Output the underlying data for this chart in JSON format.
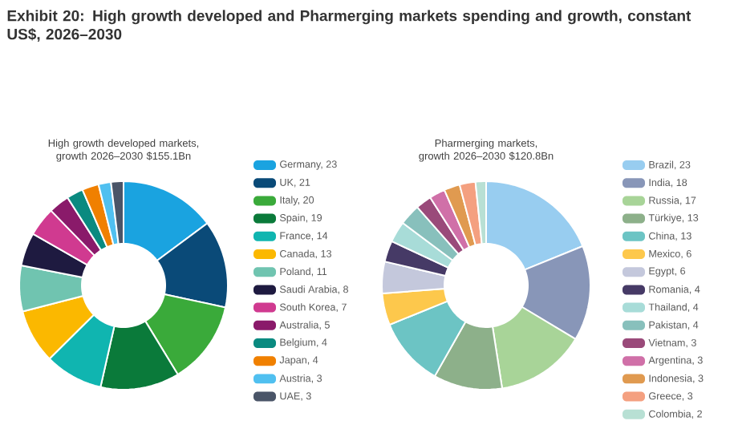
{
  "chart_data": [
    {
      "type": "donut",
      "title": "Exhibit 20: High growth developed and Pharmerging markets spending and growth, constant US$, 2026–2030",
      "subtitle": "High growth developed markets, growth 2026–2030 $155.1Bn",
      "legend": "right",
      "categories": [
        "Germany, 23",
        "UK, 21",
        "Italy, 20",
        "Spain, 19",
        "France, 14",
        "Canada, 13",
        "Poland, 11",
        "Saudi Arabia, 8",
        "South Korea, 7",
        "Australia, 5",
        "Belgium, 4",
        "Japan, 4",
        "Austria, 3",
        "UAE, 3"
      ],
      "values": [
        23,
        21,
        20,
        19,
        14,
        13,
        11,
        8,
        7,
        5,
        4,
        4,
        3,
        3
      ],
      "colors": [
        "#1aa3e0",
        "#0a4a78",
        "#3aaa3a",
        "#0a7a3a",
        "#10b5b0",
        "#fbb800",
        "#70c4b0",
        "#1e1a40",
        "#d03a90",
        "#8a1a6a",
        "#0a8a80",
        "#f08000",
        "#50c0f0",
        "#4a5568"
      ]
    },
    {
      "type": "donut",
      "subtitle": "Pharmerging markets, growth 2026–2030 $120.8Bn",
      "legend": "right",
      "categories": [
        "Brazil, 23",
        "India, 18",
        "Russia, 17",
        "Türkiye, 13",
        "China, 13",
        "Mexico, 6",
        "Egypt, 6",
        "Romania, 4",
        "Thailand, 4",
        "Pakistan, 4",
        "Vietnam, 3",
        "Argentina, 3",
        "Indonesia, 3",
        "Greece, 3",
        "Colombia, 2"
      ],
      "values": [
        23,
        18,
        17,
        13,
        13,
        6,
        6,
        4,
        4,
        4,
        3,
        3,
        3,
        3,
        2
      ],
      "colors": [
        "#98cdf0",
        "#8896b8",
        "#a8d498",
        "#8db08a",
        "#6cc4c4",
        "#fdc84c",
        "#c4c8dc",
        "#463a66",
        "#a8dcd8",
        "#88c0bc",
        "#9a4a7a",
        "#d070a8",
        "#e09a50",
        "#f4a080",
        "#b8e0d4"
      ]
    }
  ]
}
